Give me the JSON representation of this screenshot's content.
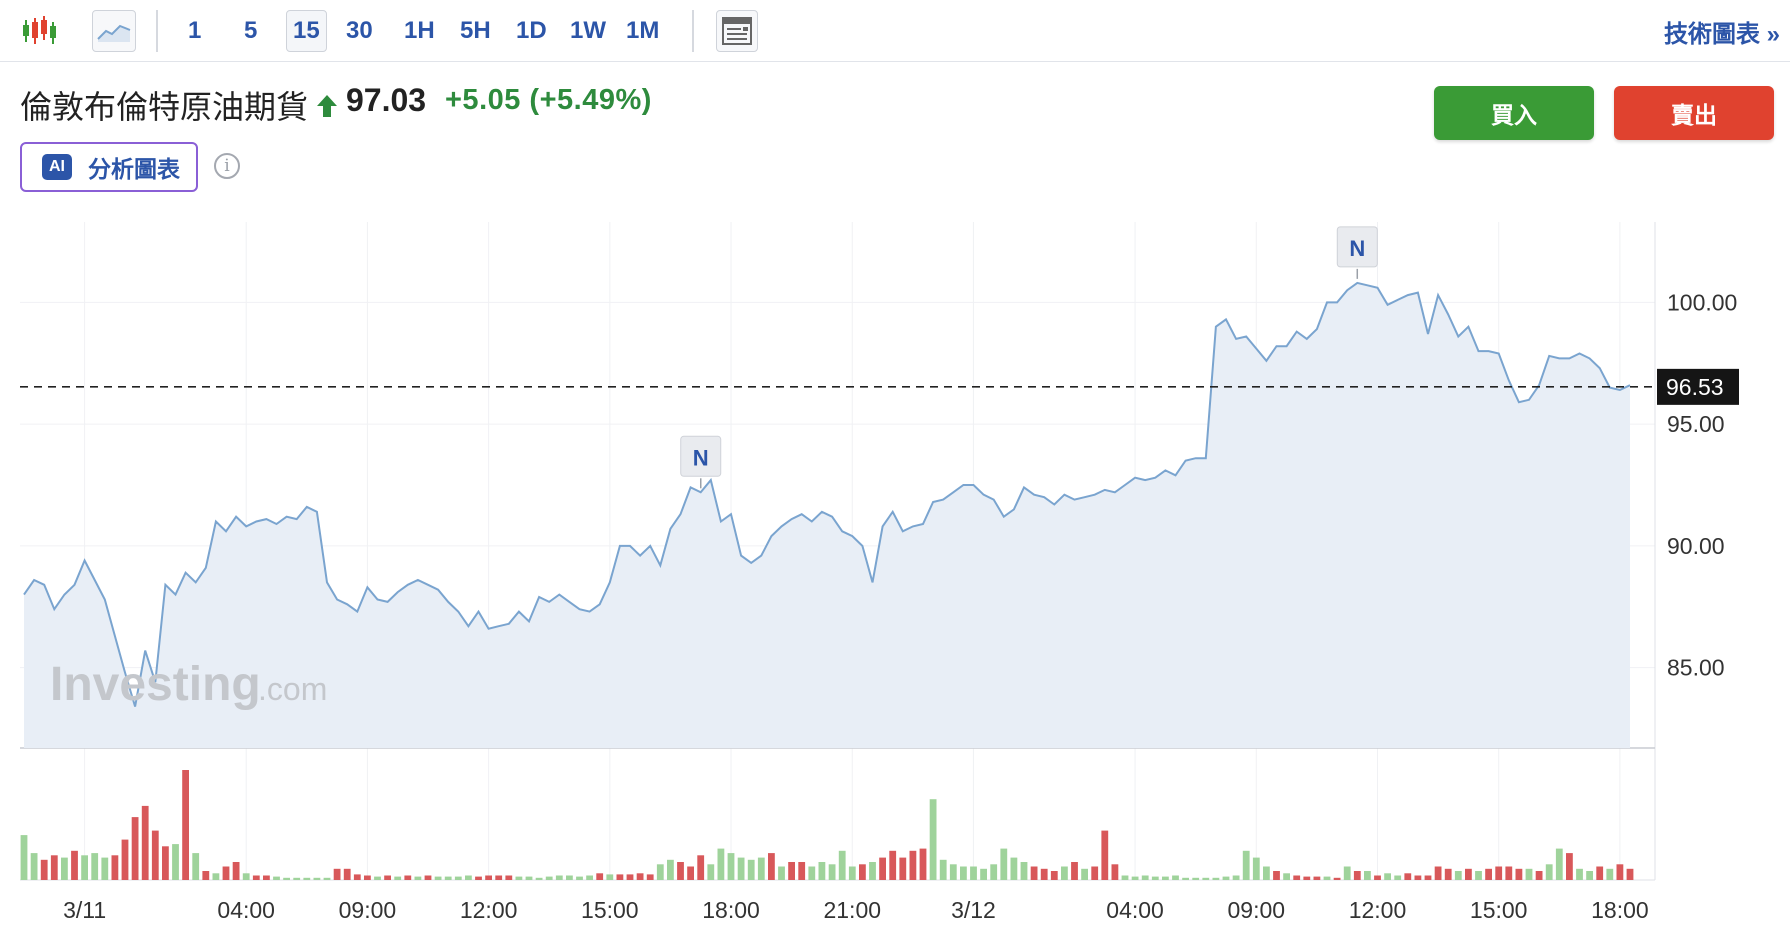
{
  "toolbar": {
    "candles_icon": "candlestick-chart-icon",
    "area_icon": "area-chart-icon",
    "timeframes": [
      "1",
      "5",
      "15",
      "30",
      "1H",
      "5H",
      "1D",
      "1W",
      "1M"
    ],
    "active_timeframe": "15",
    "layout_icon": "chart-layout-icon",
    "tech_chart_link": "技術圖表 »"
  },
  "instrument": {
    "name": "倫敦布倫特原油期貨",
    "direction": "up",
    "price": "97.03",
    "change": "+5.05 (+5.49%)"
  },
  "ai_button": {
    "badge": "AI",
    "label": "分析圖表"
  },
  "info_icon": "info-icon",
  "trade": {
    "buy": "買入",
    "sell": "賣出"
  },
  "colors": {
    "up": "#2e8b3d",
    "down": "#e0422f",
    "line": "#7aa4cf",
    "area_fill": "#e8eef6",
    "vol_up": "#9fd39b",
    "vol_down": "#d8585a",
    "link": "#2c55a8"
  },
  "watermark": {
    "brand": "Investing",
    "suffix": ".com"
  },
  "chart_data": {
    "type": "area",
    "y_axis": {
      "ticks": [
        85.0,
        90.0,
        95.0,
        100.0
      ],
      "tick_labels": [
        "85.00",
        "90.00",
        "95.00",
        "100.00"
      ],
      "range": [
        81.7,
        103.3
      ],
      "position": "right"
    },
    "x_axis": {
      "tick_labels": [
        "3/11",
        "04:00",
        "09:00",
        "12:00",
        "15:00",
        "18:00",
        "21:00",
        "3/12",
        "04:00",
        "09:00",
        "12:00",
        "15:00",
        "18:00"
      ],
      "tick_index": [
        6,
        22,
        34,
        46,
        58,
        70,
        82,
        94,
        110,
        122,
        134,
        146,
        158
      ]
    },
    "current_price_line": {
      "value": 96.53,
      "label": "96.53",
      "style": "dashed"
    },
    "news_markers": [
      {
        "label": "N",
        "index": 67
      },
      {
        "label": "N",
        "index": 132
      }
    ],
    "grid": true,
    "series": [
      {
        "values": [
          88.0,
          88.6,
          88.4,
          87.4,
          88.0,
          88.4,
          89.4,
          88.6,
          87.8,
          86.3,
          84.8,
          83.4,
          85.7,
          84.4,
          88.4,
          88.0,
          88.9,
          88.5,
          89.1,
          91.0,
          90.6,
          91.2,
          90.8,
          91.0,
          91.1,
          90.9,
          91.2,
          91.1,
          91.6,
          91.4,
          88.5,
          87.8,
          87.6,
          87.3,
          88.3,
          87.8,
          87.7,
          88.1,
          88.4,
          88.6,
          88.4,
          88.2,
          87.7,
          87.3,
          86.7,
          87.3,
          86.6,
          86.7,
          86.8,
          87.3,
          86.9,
          87.9,
          87.7,
          88.0,
          87.7,
          87.4,
          87.3,
          87.6,
          88.5,
          90.0,
          90.0,
          89.6,
          90.0,
          89.2,
          90.7,
          91.3,
          92.4,
          92.2,
          92.7,
          91.0,
          91.3,
          89.6,
          89.3,
          89.6,
          90.4,
          90.8,
          91.1,
          91.3,
          91.0,
          91.4,
          91.2,
          90.6,
          90.4,
          90.0,
          88.5,
          90.8,
          91.4,
          90.6,
          90.8,
          90.9,
          91.8,
          91.9,
          92.2,
          92.5,
          92.5,
          92.1,
          91.9,
          91.2,
          91.5,
          92.4,
          92.1,
          92.0,
          91.7,
          92.1,
          91.9,
          92.0,
          92.1,
          92.3,
          92.2,
          92.5,
          92.8,
          92.7,
          92.8,
          93.1,
          92.9,
          93.5,
          93.6,
          93.6,
          99.0,
          99.3,
          98.5,
          98.6,
          98.1,
          97.6,
          98.2,
          98.2,
          98.8,
          98.5,
          98.9,
          100.0,
          100.0,
          100.5,
          100.8,
          100.7,
          100.6,
          99.9,
          100.1,
          100.3,
          100.4,
          98.7,
          100.3,
          99.5,
          98.6,
          99.0,
          98.0,
          98.0,
          97.9,
          96.8,
          95.9,
          96.0,
          96.6,
          97.8,
          97.7,
          97.7,
          97.9,
          97.7,
          97.3,
          96.5,
          96.4,
          96.6
        ]
      }
    ],
    "volume": [
      {
        "v": 40,
        "d": "up"
      },
      {
        "v": 24,
        "d": "up"
      },
      {
        "v": 18,
        "d": "down"
      },
      {
        "v": 22,
        "d": "down"
      },
      {
        "v": 20,
        "d": "up"
      },
      {
        "v": 26,
        "d": "down"
      },
      {
        "v": 22,
        "d": "up"
      },
      {
        "v": 24,
        "d": "up"
      },
      {
        "v": 20,
        "d": "up"
      },
      {
        "v": 22,
        "d": "down"
      },
      {
        "v": 36,
        "d": "down"
      },
      {
        "v": 56,
        "d": "down"
      },
      {
        "v": 66,
        "d": "down"
      },
      {
        "v": 44,
        "d": "down"
      },
      {
        "v": 30,
        "d": "down"
      },
      {
        "v": 32,
        "d": "up"
      },
      {
        "v": 98,
        "d": "down"
      },
      {
        "v": 24,
        "d": "up"
      },
      {
        "v": 8,
        "d": "down"
      },
      {
        "v": 6,
        "d": "up"
      },
      {
        "v": 12,
        "d": "down"
      },
      {
        "v": 16,
        "d": "down"
      },
      {
        "v": 6,
        "d": "up"
      },
      {
        "v": 4,
        "d": "down"
      },
      {
        "v": 4,
        "d": "down"
      },
      {
        "v": 3,
        "d": "up"
      },
      {
        "v": 2,
        "d": "up"
      },
      {
        "v": 2,
        "d": "up"
      },
      {
        "v": 2,
        "d": "up"
      },
      {
        "v": 2,
        "d": "up"
      },
      {
        "v": 2,
        "d": "up"
      },
      {
        "v": 10,
        "d": "down"
      },
      {
        "v": 10,
        "d": "down"
      },
      {
        "v": 5,
        "d": "down"
      },
      {
        "v": 4,
        "d": "down"
      },
      {
        "v": 3,
        "d": "up"
      },
      {
        "v": 4,
        "d": "down"
      },
      {
        "v": 3,
        "d": "up"
      },
      {
        "v": 4,
        "d": "down"
      },
      {
        "v": 3,
        "d": "up"
      },
      {
        "v": 4,
        "d": "down"
      },
      {
        "v": 3,
        "d": "up"
      },
      {
        "v": 3,
        "d": "up"
      },
      {
        "v": 3,
        "d": "up"
      },
      {
        "v": 4,
        "d": "up"
      },
      {
        "v": 3,
        "d": "down"
      },
      {
        "v": 4,
        "d": "down"
      },
      {
        "v": 4,
        "d": "down"
      },
      {
        "v": 4,
        "d": "down"
      },
      {
        "v": 3,
        "d": "up"
      },
      {
        "v": 3,
        "d": "up"
      },
      {
        "v": 2,
        "d": "up"
      },
      {
        "v": 3,
        "d": "up"
      },
      {
        "v": 4,
        "d": "up"
      },
      {
        "v": 4,
        "d": "up"
      },
      {
        "v": 3,
        "d": "up"
      },
      {
        "v": 4,
        "d": "up"
      },
      {
        "v": 6,
        "d": "down"
      },
      {
        "v": 5,
        "d": "up"
      },
      {
        "v": 5,
        "d": "down"
      },
      {
        "v": 5,
        "d": "down"
      },
      {
        "v": 6,
        "d": "down"
      },
      {
        "v": 5,
        "d": "down"
      },
      {
        "v": 14,
        "d": "up"
      },
      {
        "v": 18,
        "d": "up"
      },
      {
        "v": 16,
        "d": "down"
      },
      {
        "v": 12,
        "d": "down"
      },
      {
        "v": 22,
        "d": "down"
      },
      {
        "v": 14,
        "d": "up"
      },
      {
        "v": 28,
        "d": "up"
      },
      {
        "v": 24,
        "d": "up"
      },
      {
        "v": 20,
        "d": "up"
      },
      {
        "v": 18,
        "d": "up"
      },
      {
        "v": 20,
        "d": "up"
      },
      {
        "v": 24,
        "d": "down"
      },
      {
        "v": 12,
        "d": "up"
      },
      {
        "v": 16,
        "d": "down"
      },
      {
        "v": 16,
        "d": "down"
      },
      {
        "v": 12,
        "d": "up"
      },
      {
        "v": 16,
        "d": "up"
      },
      {
        "v": 14,
        "d": "up"
      },
      {
        "v": 26,
        "d": "up"
      },
      {
        "v": 12,
        "d": "up"
      },
      {
        "v": 14,
        "d": "down"
      },
      {
        "v": 16,
        "d": "up"
      },
      {
        "v": 20,
        "d": "down"
      },
      {
        "v": 26,
        "d": "down"
      },
      {
        "v": 20,
        "d": "down"
      },
      {
        "v": 26,
        "d": "down"
      },
      {
        "v": 28,
        "d": "down"
      },
      {
        "v": 72,
        "d": "up"
      },
      {
        "v": 18,
        "d": "up"
      },
      {
        "v": 14,
        "d": "up"
      },
      {
        "v": 12,
        "d": "up"
      },
      {
        "v": 12,
        "d": "up"
      },
      {
        "v": 10,
        "d": "up"
      },
      {
        "v": 14,
        "d": "up"
      },
      {
        "v": 28,
        "d": "up"
      },
      {
        "v": 20,
        "d": "up"
      },
      {
        "v": 16,
        "d": "up"
      },
      {
        "v": 12,
        "d": "down"
      },
      {
        "v": 10,
        "d": "down"
      },
      {
        "v": 8,
        "d": "down"
      },
      {
        "v": 12,
        "d": "up"
      },
      {
        "v": 16,
        "d": "down"
      },
      {
        "v": 10,
        "d": "up"
      },
      {
        "v": 12,
        "d": "down"
      },
      {
        "v": 44,
        "d": "down"
      },
      {
        "v": 14,
        "d": "down"
      },
      {
        "v": 4,
        "d": "up"
      },
      {
        "v": 3,
        "d": "up"
      },
      {
        "v": 4,
        "d": "up"
      },
      {
        "v": 3,
        "d": "up"
      },
      {
        "v": 3,
        "d": "up"
      },
      {
        "v": 4,
        "d": "up"
      },
      {
        "v": 2,
        "d": "up"
      },
      {
        "v": 2,
        "d": "up"
      },
      {
        "v": 2,
        "d": "up"
      },
      {
        "v": 2,
        "d": "up"
      },
      {
        "v": 3,
        "d": "up"
      },
      {
        "v": 4,
        "d": "up"
      },
      {
        "v": 26,
        "d": "up"
      },
      {
        "v": 20,
        "d": "up"
      },
      {
        "v": 12,
        "d": "up"
      },
      {
        "v": 8,
        "d": "down"
      },
      {
        "v": 6,
        "d": "up"
      },
      {
        "v": 4,
        "d": "down"
      },
      {
        "v": 3,
        "d": "down"
      },
      {
        "v": 3,
        "d": "down"
      },
      {
        "v": 3,
        "d": "up"
      },
      {
        "v": 2,
        "d": "down"
      },
      {
        "v": 12,
        "d": "up"
      },
      {
        "v": 8,
        "d": "down"
      },
      {
        "v": 8,
        "d": "up"
      },
      {
        "v": 4,
        "d": "down"
      },
      {
        "v": 6,
        "d": "up"
      },
      {
        "v": 4,
        "d": "up"
      },
      {
        "v": 6,
        "d": "down"
      },
      {
        "v": 4,
        "d": "down"
      },
      {
        "v": 4,
        "d": "down"
      },
      {
        "v": 12,
        "d": "down"
      },
      {
        "v": 10,
        "d": "down"
      },
      {
        "v": 8,
        "d": "up"
      },
      {
        "v": 10,
        "d": "down"
      },
      {
        "v": 8,
        "d": "up"
      },
      {
        "v": 10,
        "d": "down"
      },
      {
        "v": 12,
        "d": "down"
      },
      {
        "v": 12,
        "d": "down"
      },
      {
        "v": 10,
        "d": "down"
      },
      {
        "v": 10,
        "d": "up"
      },
      {
        "v": 8,
        "d": "down"
      },
      {
        "v": 14,
        "d": "up"
      },
      {
        "v": 28,
        "d": "up"
      },
      {
        "v": 24,
        "d": "down"
      },
      {
        "v": 10,
        "d": "up"
      },
      {
        "v": 8,
        "d": "up"
      },
      {
        "v": 12,
        "d": "down"
      },
      {
        "v": 10,
        "d": "up"
      },
      {
        "v": 14,
        "d": "down"
      },
      {
        "v": 10,
        "d": "down"
      }
    ]
  }
}
